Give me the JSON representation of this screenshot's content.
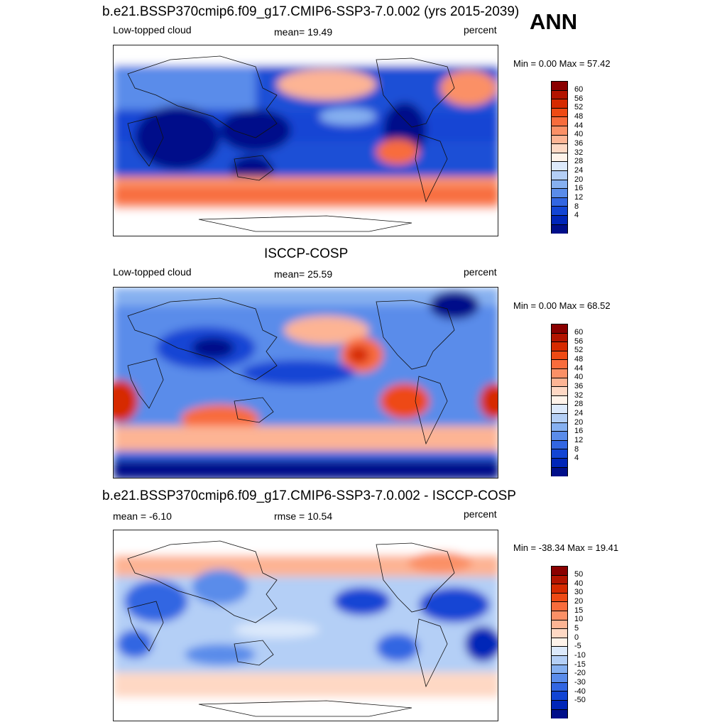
{
  "season": "ANN",
  "panels": [
    {
      "title": "b.e21.BSSP370cmip6.f09_g17.CMIP6-SSP3-7.0.002 (yrs 2015-2039)",
      "left_label": "Low-topped cloud",
      "center_label": "mean=  19.49",
      "right_label": "percent",
      "minmax": "Min =   0.00 Max =  57.42",
      "colorbar": {
        "ticks": [
          "60",
          "56",
          "52",
          "48",
          "44",
          "40",
          "36",
          "32",
          "28",
          "24",
          "20",
          "16",
          "12",
          "8",
          "4"
        ],
        "colors": [
          "#8a0000",
          "#b31400",
          "#d62a00",
          "#ee4a14",
          "#f86c3c",
          "#fb9066",
          "#fdb494",
          "#fed8c4",
          "#fff3ea",
          "#dce9fb",
          "#b4cff6",
          "#86b0f0",
          "#5a8cea",
          "#3266e2",
          "#1245d4",
          "#0026b8",
          "#000f8a"
        ]
      }
    },
    {
      "title": "ISCCP-COSP",
      "left_label": "Low-topped cloud",
      "center_label": "mean=  25.59",
      "right_label": "percent",
      "minmax": "Min =   0.00 Max =  68.52",
      "colorbar": {
        "ticks": [
          "60",
          "56",
          "52",
          "48",
          "44",
          "40",
          "36",
          "32",
          "28",
          "24",
          "20",
          "16",
          "12",
          "8",
          "4"
        ],
        "colors": [
          "#8a0000",
          "#b31400",
          "#d62a00",
          "#ee4a14",
          "#f86c3c",
          "#fb9066",
          "#fdb494",
          "#fed8c4",
          "#fff3ea",
          "#dce9fb",
          "#b4cff6",
          "#86b0f0",
          "#5a8cea",
          "#3266e2",
          "#1245d4",
          "#0026b8",
          "#000f8a"
        ]
      }
    },
    {
      "title": "b.e21.BSSP370cmip6.f09_g17.CMIP6-SSP3-7.0.002 - ISCCP-COSP",
      "left_label": "mean =  -6.10",
      "center_label": "rmse =  10.54",
      "right_label": "percent",
      "minmax": "Min = -38.34 Max =  19.41",
      "colorbar": {
        "ticks": [
          "50",
          "40",
          "30",
          "20",
          "15",
          "10",
          "5",
          "0",
          "-5",
          "-10",
          "-15",
          "-20",
          "-30",
          "-40",
          "-50"
        ],
        "colors": [
          "#8a0000",
          "#b31400",
          "#d62a00",
          "#ee4a14",
          "#f86c3c",
          "#fb9066",
          "#fdb494",
          "#fed8c4",
          "#fff3ea",
          "#dce9fb",
          "#b4cff6",
          "#86b0f0",
          "#5a8cea",
          "#3266e2",
          "#1245d4",
          "#0026b8",
          "#000f8a"
        ]
      }
    }
  ]
}
